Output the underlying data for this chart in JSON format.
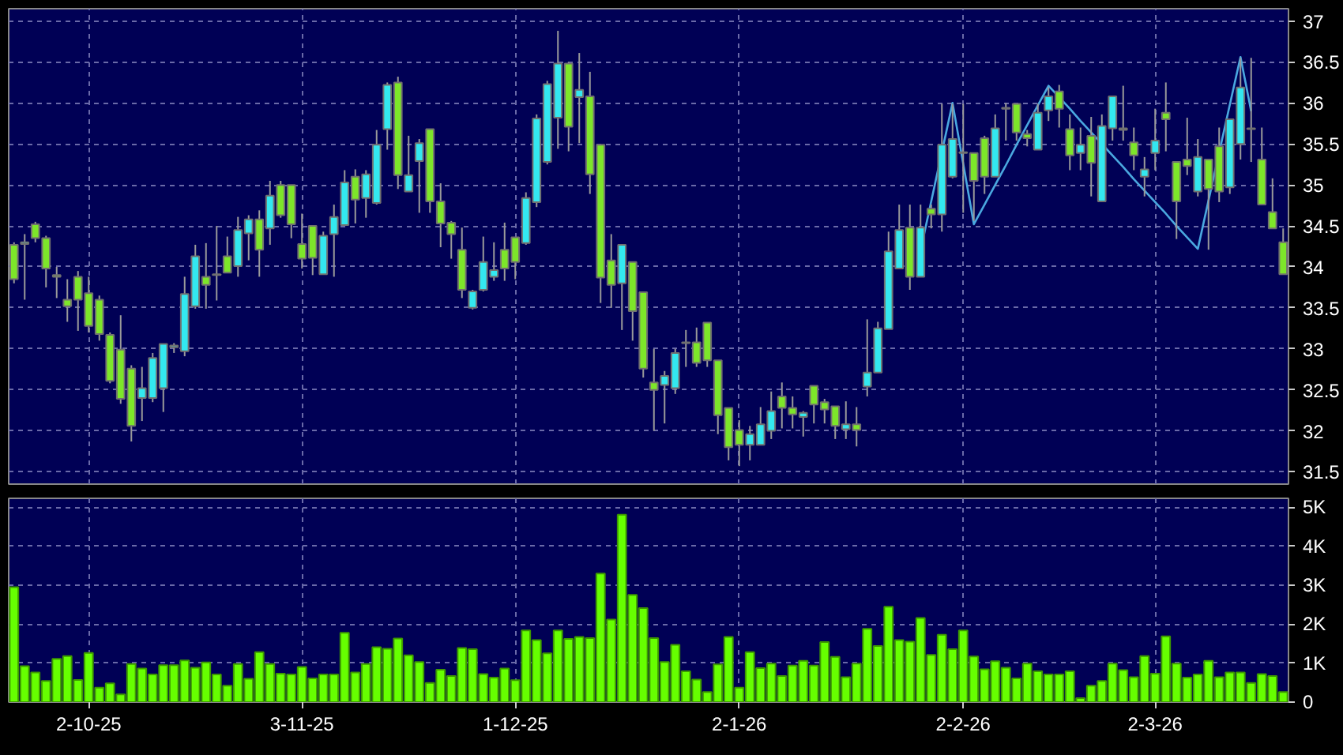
{
  "chart_data": [
    {
      "type": "candlestick",
      "categories": [
        null,
        null,
        null,
        null,
        null,
        null,
        null,
        null,
        null,
        null,
        null,
        null,
        null,
        null,
        null,
        null,
        null,
        null,
        null,
        null,
        null,
        null,
        null,
        null,
        null,
        null,
        null,
        null,
        null,
        null,
        null,
        null,
        null,
        null,
        null,
        null,
        null,
        null,
        null,
        null,
        null,
        null,
        null,
        null,
        null,
        null,
        null,
        null,
        null,
        null,
        null,
        null,
        null,
        null,
        null,
        null,
        null,
        null,
        null,
        null,
        null,
        null,
        null,
        null,
        null,
        null,
        null,
        null,
        null,
        null,
        null,
        null,
        null,
        null,
        null,
        null,
        null,
        null,
        null,
        null,
        null,
        null,
        null,
        null,
        null,
        null,
        null,
        null,
        null,
        null,
        null,
        null,
        null,
        null,
        null,
        null,
        null,
        null,
        null,
        null,
        null,
        null,
        null,
        null,
        null,
        null,
        null,
        null,
        null,
        null,
        null,
        null,
        null,
        null,
        null,
        null,
        null,
        null,
        null,
        null
      ],
      "ohlc": [
        [
          34.27,
          34.3,
          33.8,
          33.85
        ],
        [
          34.28,
          34.4,
          33.6,
          34.3
        ],
        [
          34.52,
          34.55,
          34.3,
          34.35
        ],
        [
          34.35,
          34.38,
          33.75,
          33.98
        ],
        [
          33.9,
          34.0,
          33.62,
          33.88
        ],
        [
          33.6,
          33.85,
          33.33,
          33.52
        ],
        [
          33.88,
          33.95,
          33.22,
          33.6
        ],
        [
          33.68,
          33.88,
          33.2,
          33.28
        ],
        [
          33.6,
          33.65,
          33.1,
          33.18
        ],
        [
          33.17,
          33.2,
          32.58,
          32.61
        ],
        [
          32.99,
          33.41,
          32.33,
          32.39
        ],
        [
          32.76,
          32.8,
          31.87,
          32.06
        ],
        [
          32.4,
          32.78,
          32.12,
          32.52
        ],
        [
          32.4,
          32.95,
          32.35,
          32.89
        ],
        [
          32.52,
          33.06,
          32.23,
          33.06
        ],
        [
          33.02,
          33.07,
          32.95,
          33.04
        ],
        [
          32.97,
          33.88,
          32.91,
          33.67
        ],
        [
          33.52,
          34.27,
          33.49,
          34.13
        ],
        [
          33.88,
          34.29,
          33.49,
          33.78
        ],
        [
          33.9,
          34.5,
          33.59,
          33.91
        ],
        [
          34.13,
          34.37,
          33.93,
          33.93
        ],
        [
          34.01,
          34.61,
          33.88,
          34.45
        ],
        [
          34.41,
          34.63,
          34.08,
          34.58
        ],
        [
          34.58,
          34.69,
          33.88,
          34.21
        ],
        [
          34.47,
          35.05,
          34.27,
          34.87
        ],
        [
          35.0,
          35.05,
          34.6,
          34.63
        ],
        [
          35.0,
          35.0,
          34.35,
          34.52
        ],
        [
          34.28,
          34.65,
          33.98,
          34.1
        ],
        [
          34.5,
          34.5,
          33.9,
          34.11
        ],
        [
          33.91,
          34.43,
          33.91,
          34.38
        ],
        [
          34.4,
          34.76,
          33.88,
          34.61
        ],
        [
          34.51,
          35.18,
          34.51,
          35.03
        ],
        [
          35.1,
          35.19,
          34.53,
          34.82
        ],
        [
          34.84,
          35.18,
          34.6,
          35.13
        ],
        [
          34.78,
          35.67,
          34.76,
          35.49
        ],
        [
          35.68,
          36.25,
          35.43,
          36.22
        ],
        [
          36.25,
          36.32,
          34.95,
          35.12
        ],
        [
          34.92,
          35.6,
          34.92,
          35.12
        ],
        [
          35.29,
          35.56,
          34.66,
          35.51
        ],
        [
          35.68,
          35.68,
          34.66,
          34.8
        ],
        [
          34.8,
          35.02,
          34.24,
          34.53
        ],
        [
          34.54,
          34.56,
          34.1,
          34.4
        ],
        [
          34.21,
          34.48,
          33.62,
          33.72
        ],
        [
          33.5,
          33.72,
          33.48,
          33.7
        ],
        [
          33.72,
          34.37,
          33.7,
          34.06
        ],
        [
          33.88,
          34.3,
          33.83,
          33.96
        ],
        [
          34.21,
          34.54,
          33.83,
          33.98
        ],
        [
          34.36,
          34.36,
          33.85,
          34.06
        ],
        [
          34.29,
          34.91,
          34.27,
          34.84
        ],
        [
          34.79,
          35.86,
          34.73,
          35.81
        ],
        [
          35.28,
          36.27,
          35.25,
          36.23
        ],
        [
          35.82,
          36.88,
          35.44,
          36.48
        ],
        [
          36.48,
          36.5,
          35.41,
          35.71
        ],
        [
          36.07,
          36.61,
          35.51,
          36.16
        ],
        [
          36.08,
          36.38,
          34.89,
          35.13
        ],
        [
          35.49,
          35.49,
          33.56,
          33.87
        ],
        [
          34.08,
          34.4,
          33.5,
          33.78
        ],
        [
          33.8,
          34.27,
          33.23,
          34.27
        ],
        [
          34.06,
          34.06,
          33.1,
          33.46
        ],
        [
          33.69,
          33.69,
          32.65,
          32.76
        ],
        [
          32.59,
          33.0,
          32.0,
          32.5
        ],
        [
          32.56,
          32.73,
          32.09,
          32.67
        ],
        [
          32.52,
          33.0,
          32.45,
          32.95
        ],
        [
          33.07,
          33.23,
          32.78,
          33.08
        ],
        [
          33.08,
          33.26,
          32.78,
          32.83
        ],
        [
          33.32,
          33.32,
          32.78,
          32.86
        ],
        [
          32.86,
          32.86,
          31.96,
          32.19
        ],
        [
          32.28,
          32.28,
          31.64,
          31.8
        ],
        [
          32.01,
          32.13,
          31.57,
          31.83
        ],
        [
          31.83,
          32.06,
          31.64,
          31.96
        ],
        [
          31.83,
          32.29,
          31.83,
          32.08
        ],
        [
          32.0,
          32.48,
          31.9,
          32.24
        ],
        [
          32.42,
          32.59,
          32.03,
          32.28
        ],
        [
          32.28,
          32.42,
          32.03,
          32.2
        ],
        [
          32.17,
          32.24,
          31.93,
          32.22
        ],
        [
          32.55,
          32.55,
          32.09,
          32.32
        ],
        [
          32.35,
          32.39,
          32.09,
          32.26
        ],
        [
          32.3,
          32.3,
          31.9,
          32.06
        ],
        [
          32.02,
          32.36,
          31.9,
          32.08
        ],
        [
          32.08,
          32.29,
          31.81,
          32.01
        ],
        [
          32.54,
          33.36,
          32.42,
          32.71
        ],
        [
          32.71,
          33.33,
          32.71,
          33.25
        ],
        [
          33.24,
          34.43,
          33.24,
          34.19
        ],
        [
          33.98,
          34.76,
          33.98,
          34.45
        ],
        [
          34.48,
          34.76,
          33.72,
          33.88
        ],
        [
          33.88,
          34.76,
          33.88,
          34.48
        ],
        [
          34.71,
          34.76,
          34.47,
          34.64
        ],
        [
          34.64,
          35.99,
          34.43,
          35.49
        ],
        [
          35.1,
          35.99,
          35.08,
          35.56
        ],
        [
          35.4,
          35.99,
          34.66,
          35.39
        ],
        [
          35.39,
          35.39,
          34.56,
          35.05
        ],
        [
          35.57,
          35.6,
          34.89,
          35.1
        ],
        [
          35.1,
          35.86,
          35.1,
          35.69
        ],
        [
          35.94,
          36.0,
          35.54,
          35.93
        ],
        [
          35.99,
          35.99,
          35.54,
          35.64
        ],
        [
          35.62,
          35.67,
          35.47,
          35.57
        ],
        [
          35.43,
          35.99,
          35.43,
          35.88
        ],
        [
          35.91,
          36.19,
          35.78,
          36.08
        ],
        [
          36.14,
          36.22,
          35.7,
          35.93
        ],
        [
          35.68,
          35.86,
          35.18,
          35.36
        ],
        [
          35.39,
          35.7,
          35.18,
          35.49
        ],
        [
          35.6,
          35.83,
          34.86,
          35.27
        ],
        [
          34.8,
          35.86,
          34.8,
          35.72
        ],
        [
          35.69,
          36.08,
          35.54,
          36.08
        ],
        [
          35.69,
          36.21,
          35.54,
          35.67
        ],
        [
          35.52,
          35.7,
          35.18,
          35.36
        ],
        [
          35.1,
          35.34,
          34.86,
          35.19
        ],
        [
          35.39,
          35.93,
          35.18,
          35.54
        ],
        [
          35.88,
          36.25,
          35.41,
          35.8
        ],
        [
          35.28,
          35.28,
          34.34,
          34.8
        ],
        [
          35.31,
          35.82,
          35.12,
          35.23
        ],
        [
          34.92,
          35.56,
          34.86,
          35.34
        ],
        [
          35.31,
          35.31,
          34.21,
          34.95
        ],
        [
          35.47,
          35.7,
          34.79,
          34.92
        ],
        [
          34.97,
          35.8,
          34.89,
          35.8
        ],
        [
          35.5,
          36.55,
          35.31,
          36.19
        ],
        [
          35.69,
          36.55,
          35.28,
          35.68
        ],
        [
          35.31,
          35.7,
          34.76,
          34.76
        ],
        [
          34.67,
          35.08,
          34.47,
          34.47
        ],
        [
          34.3,
          34.47,
          33.91,
          33.91
        ]
      ],
      "colors": [
        "#7de62a",
        "#33e8f0",
        "#7de62a",
        "#7de62a",
        "#7de62a",
        "#7de62a",
        "#7de62a",
        "#7de62a",
        "#7de62a",
        "#7de62a",
        "#7de62a",
        "#7de62a",
        "#33e8f0",
        "#33e8f0",
        "#33e8f0",
        "#33e8f0",
        "#33e8f0",
        "#33e8f0",
        "#7de62a",
        "#33e8f0",
        "#7de62a",
        "#33e8f0",
        "#33e8f0",
        "#7de62a",
        "#33e8f0",
        "#7de62a",
        "#7de62a",
        "#7de62a",
        "#7de62a",
        "#33e8f0",
        "#33e8f0",
        "#33e8f0",
        "#7de62a",
        "#33e8f0",
        "#33e8f0",
        "#33e8f0",
        "#7de62a",
        "#33e8f0",
        "#33e8f0",
        "#7de62a",
        "#7de62a",
        "#7de62a",
        "#7de62a",
        "#33e8f0",
        "#33e8f0",
        "#33e8f0",
        "#7de62a",
        "#7de62a",
        "#33e8f0",
        "#33e8f0",
        "#33e8f0",
        "#33e8f0",
        "#7de62a",
        "#33e8f0",
        "#7de62a",
        "#7de62a",
        "#7de62a",
        "#33e8f0",
        "#7de62a",
        "#7de62a",
        "#7de62a",
        "#33e8f0",
        "#33e8f0",
        "#33e8f0",
        "#7de62a",
        "#7de62a",
        "#7de62a",
        "#7de62a",
        "#7de62a",
        "#33e8f0",
        "#33e8f0",
        "#33e8f0",
        "#7de62a",
        "#7de62a",
        "#33e8f0",
        "#7de62a",
        "#7de62a",
        "#7de62a",
        "#33e8f0",
        "#7de62a",
        "#33e8f0",
        "#33e8f0",
        "#33e8f0",
        "#33e8f0",
        "#7de62a",
        "#33e8f0",
        "#7de62a",
        "#33e8f0",
        "#33e8f0",
        "#7de62a",
        "#7de62a",
        "#7de62a",
        "#33e8f0",
        "#7de62a",
        "#7de62a",
        "#7de62a",
        "#33e8f0",
        "#33e8f0",
        "#7de62a",
        "#7de62a",
        "#33e8f0",
        "#7de62a",
        "#33e8f0",
        "#33e8f0",
        "#7de62a",
        "#7de62a",
        "#33e8f0",
        "#33e8f0",
        "#7de62a",
        "#7de62a",
        "#7de62a",
        "#33e8f0",
        "#7de62a",
        "#7de62a",
        "#33e8f0",
        "#33e8f0",
        "#7de62a",
        "#7de62a",
        "#7de62a",
        "#7de62a"
      ],
      "series": [
        {
          "type": "line",
          "color": "#4aa8e0",
          "values": [
            null,
            null,
            null,
            null,
            null,
            null,
            null,
            null,
            null,
            null,
            null,
            null,
            null,
            null,
            null,
            null,
            null,
            null,
            null,
            null,
            null,
            null,
            null,
            null,
            null,
            null,
            null,
            null,
            null,
            null,
            null,
            null,
            null,
            null,
            null,
            null,
            null,
            null,
            null,
            null,
            null,
            null,
            null,
            null,
            null,
            null,
            null,
            null,
            null,
            null,
            null,
            null,
            null,
            null,
            null,
            null,
            null,
            null,
            null,
            null,
            null,
            null,
            null,
            null,
            null,
            null,
            null,
            null,
            null,
            null,
            null,
            null,
            null,
            null,
            null,
            null,
            null,
            null,
            null,
            null,
            null,
            null,
            null,
            null,
            null,
            34.2,
            34.8,
            35.4,
            36.0,
            35.26,
            34.52,
            34.76,
            35.0,
            35.24,
            35.49,
            35.73,
            35.97,
            36.21,
            36.07,
            35.93,
            35.78,
            35.64,
            35.5,
            35.36,
            35.22,
            35.07,
            34.93,
            34.79,
            34.65,
            34.5,
            34.36,
            34.22,
            34.81,
            null,
            35.98,
            36.56,
            35.9,
            null,
            null,
            null
          ]
        }
      ],
      "ylim": [
        31.35,
        37.15
      ],
      "yticks": [
        31.5,
        32,
        32.5,
        33,
        33.5,
        34,
        34.5,
        35,
        35.5,
        36,
        36.5,
        37
      ],
      "grid": true,
      "tick_labels": "y"
    },
    {
      "type": "bar",
      "categories": [
        null,
        null,
        null,
        null,
        null,
        null,
        null,
        "2-10-25",
        null,
        null,
        null,
        null,
        null,
        null,
        null,
        null,
        null,
        null,
        null,
        null,
        null,
        null,
        null,
        null,
        null,
        null,
        null,
        "3-11-25",
        null,
        null,
        null,
        null,
        null,
        null,
        null,
        null,
        null,
        null,
        null,
        null,
        null,
        null,
        null,
        null,
        null,
        null,
        null,
        "1-12-25",
        null,
        null,
        null,
        null,
        null,
        null,
        null,
        null,
        null,
        null,
        null,
        null,
        null,
        null,
        null,
        null,
        null,
        null,
        null,
        null,
        "2-1-26",
        null,
        null,
        null,
        null,
        null,
        null,
        null,
        null,
        null,
        null,
        null,
        null,
        null,
        null,
        null,
        null,
        null,
        null,
        null,
        null,
        "2-2-26",
        null,
        null,
        null,
        null,
        null,
        null,
        null,
        null,
        null,
        null,
        null,
        null,
        null,
        null,
        null,
        null,
        null,
        "2-3-26",
        null,
        null,
        null,
        null,
        null,
        null,
        null,
        null,
        null,
        null,
        null,
        null
      ],
      "values": [
        2950,
        920,
        760,
        540,
        1110,
        1180,
        570,
        1260,
        370,
        480,
        200,
        980,
        860,
        710,
        950,
        950,
        1070,
        880,
        1020,
        710,
        420,
        980,
        600,
        1280,
        980,
        730,
        710,
        900,
        610,
        710,
        710,
        1780,
        760,
        980,
        1410,
        1370,
        1630,
        1200,
        1030,
        490,
        830,
        670,
        1390,
        1360,
        720,
        630,
        860,
        560,
        1840,
        1590,
        1250,
        1840,
        1620,
        1670,
        1640,
        3300,
        2120,
        4810,
        2750,
        2410,
        1640,
        1030,
        1470,
        790,
        580,
        260,
        970,
        1670,
        370,
        1280,
        870,
        990,
        670,
        940,
        1060,
        940,
        1540,
        1160,
        640,
        990,
        1880,
        1440,
        2450,
        1590,
        1550,
        2160,
        1210,
        1730,
        1360,
        1840,
        1170,
        840,
        1050,
        880,
        610,
        990,
        790,
        710,
        710,
        790,
        100,
        420,
        540,
        990,
        820,
        640,
        1180,
        730,
        1690,
        990,
        630,
        710,
        1060,
        640,
        760,
        760,
        490,
        720,
        670,
        260
      ],
      "color": "#66ff00",
      "ylim": [
        0,
        5230
      ],
      "yticks": [
        {
          "value": 0,
          "label": "0"
        },
        {
          "value": 1000,
          "label": "1K"
        },
        {
          "value": 2000,
          "label": "2K"
        },
        {
          "value": 3000,
          "label": "3K"
        },
        {
          "value": 4000,
          "label": "4K"
        },
        {
          "value": 5000,
          "label": "5K"
        }
      ],
      "grid": true
    }
  ]
}
